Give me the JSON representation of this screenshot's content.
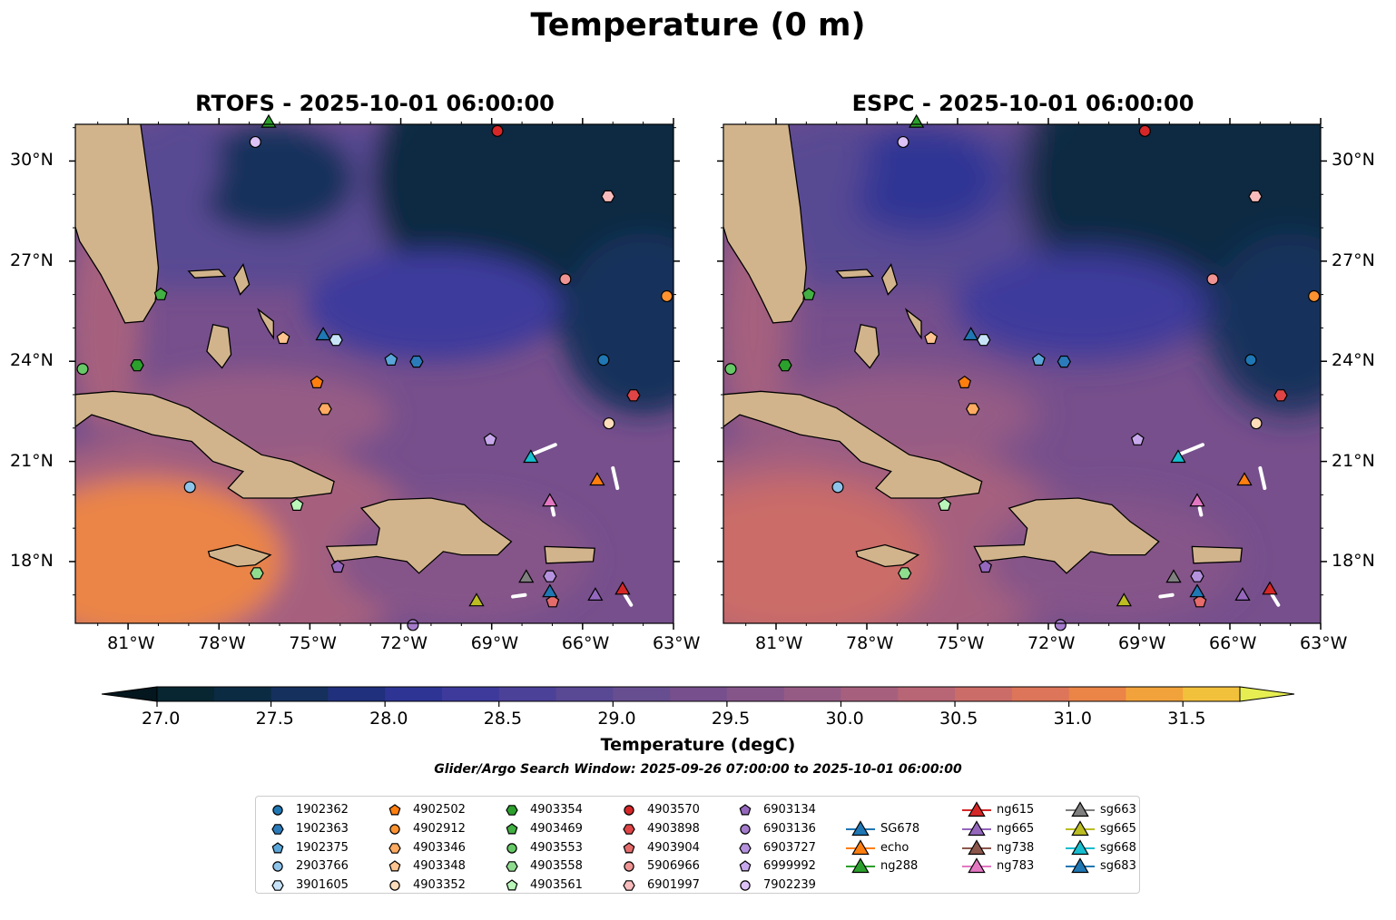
{
  "title": "Temperature (0 m)",
  "panels": [
    {
      "id": "rtofs",
      "title": "RTOFS - 2025-10-01 06:00:00"
    },
    {
      "id": "espc",
      "title": "ESPC - 2025-10-01 06:00:00"
    }
  ],
  "axes": {
    "lon_ticks": [
      "81°W",
      "78°W",
      "75°W",
      "72°W",
      "69°W",
      "66°W",
      "63°W"
    ],
    "lon_values": [
      -81,
      -78,
      -75,
      -72,
      -69,
      -66,
      -63
    ],
    "lat_ticks": [
      "30°N",
      "27°N",
      "24°N",
      "21°N",
      "18°N"
    ],
    "lat_values": [
      30,
      27,
      24,
      21,
      18
    ],
    "lon_range": [
      -82.74,
      -63.0
    ],
    "lat_range": [
      16.15,
      31.1
    ]
  },
  "colorbar": {
    "label": "Temperature (degC)",
    "range": [
      27.0,
      31.75
    ],
    "step": 0.25,
    "extend": "both",
    "ticks": [
      "27.0",
      "27.5",
      "28.0",
      "28.5",
      "29.0",
      "29.5",
      "30.0",
      "30.5",
      "31.0",
      "31.5"
    ],
    "tick_values": [
      27.0,
      27.5,
      28.0,
      28.5,
      29.0,
      29.5,
      30.0,
      30.5,
      31.0,
      31.5
    ],
    "colors": [
      "#072631",
      "#0b2b42",
      "#15305c",
      "#20307c",
      "#2e3494",
      "#3d3a9c",
      "#4b4198",
      "#594893",
      "#674e90",
      "#764f8c",
      "#855589",
      "#955b85",
      "#a6607e",
      "#b86675",
      "#cb6c68",
      "#dc7559",
      "#ea8447",
      "#f2a23a",
      "#f2c13c"
    ],
    "under_color": "#04161e",
    "over_color": "#e6ee52"
  },
  "search_window": "Glider/Argo Search Window: 2025-09-26 07:00:00 to 2025-10-01 06:00:00",
  "legend": [
    {
      "label": "1902362",
      "color": "#1f77b4",
      "marker": "circle"
    },
    {
      "label": "1902363",
      "color": "#2b7bba",
      "marker": "hexagon"
    },
    {
      "label": "1902375",
      "color": "#5aa6d9",
      "marker": "pentagon"
    },
    {
      "label": "2903766",
      "color": "#8ec3ea",
      "marker": "circle"
    },
    {
      "label": "3901605",
      "color": "#c7e3f8",
      "marker": "hexagon"
    },
    {
      "label": "4902502",
      "color": "#ff7f0e",
      "marker": "pentagon"
    },
    {
      "label": "4902912",
      "color": "#ff9230",
      "marker": "circle"
    },
    {
      "label": "4903346",
      "color": "#ffab62",
      "marker": "hexagon"
    },
    {
      "label": "4903348",
      "color": "#ffc48f",
      "marker": "pentagon"
    },
    {
      "label": "4903352",
      "color": "#ffddbb",
      "marker": "circle"
    },
    {
      "label": "4903354",
      "color": "#2ca02c",
      "marker": "hexagon"
    },
    {
      "label": "4903469",
      "color": "#42b042",
      "marker": "pentagon"
    },
    {
      "label": "4903553",
      "color": "#66c866",
      "marker": "circle"
    },
    {
      "label": "4903558",
      "color": "#8fdc8f",
      "marker": "hexagon"
    },
    {
      "label": "4903561",
      "color": "#baf6ba",
      "marker": "pentagon"
    },
    {
      "label": "4903570",
      "color": "#d62728",
      "marker": "circle"
    },
    {
      "label": "4903898",
      "color": "#df4546",
      "marker": "hexagon"
    },
    {
      "label": "4903904",
      "color": "#e66b6b",
      "marker": "pentagon"
    },
    {
      "label": "5906966",
      "color": "#ef9393",
      "marker": "circle"
    },
    {
      "label": "6901997",
      "color": "#f8bcbc",
      "marker": "hexagon"
    },
    {
      "label": "6903134",
      "color": "#9467bd",
      "marker": "pentagon"
    },
    {
      "label": "6903136",
      "color": "#a57ccc",
      "marker": "circle"
    },
    {
      "label": "6903727",
      "color": "#b592de",
      "marker": "hexagon"
    },
    {
      "label": "6999992",
      "color": "#c8a8ec",
      "marker": "pentagon"
    },
    {
      "label": "7902239",
      "color": "#dcc2f7",
      "marker": "circle"
    },
    {
      "label": "SG678",
      "color": "#1f77b4",
      "marker": "triangle"
    },
    {
      "label": "echo",
      "color": "#ff7f0e",
      "marker": "triangle"
    },
    {
      "label": "ng288",
      "color": "#2ca02c",
      "marker": "triangle"
    },
    {
      "label": "ng615",
      "color": "#d62728",
      "marker": "triangle"
    },
    {
      "label": "ng665",
      "color": "#9467bd",
      "marker": "triangle"
    },
    {
      "label": "ng738",
      "color": "#8c564b",
      "marker": "triangle"
    },
    {
      "label": "ng783",
      "color": "#e377c2",
      "marker": "triangle"
    },
    {
      "label": "sg663",
      "color": "#7f7f7f",
      "marker": "triangle"
    },
    {
      "label": "sg665",
      "color": "#bcbd22",
      "marker": "triangle"
    },
    {
      "label": "sg668",
      "color": "#17becf",
      "marker": "triangle"
    },
    {
      "label": "sg683",
      "color": "#1f77b4",
      "marker": "triangle"
    }
  ],
  "observations": [
    {
      "id": "ng288",
      "lon": -76.36,
      "lat": 31.17
    },
    {
      "id": "7902239",
      "lon": -76.8,
      "lat": 30.57
    },
    {
      "id": "4903570",
      "lon": -68.81,
      "lat": 30.9
    },
    {
      "id": "6901997",
      "lon": -65.16,
      "lat": 28.94
    },
    {
      "id": "5906966",
      "lon": -66.57,
      "lat": 26.46
    },
    {
      "id": "4902912",
      "lon": -63.22,
      "lat": 25.95
    },
    {
      "id": "4903469",
      "lon": -79.92,
      "lat": 26.0
    },
    {
      "id": "4903553",
      "lon": -82.5,
      "lat": 23.77
    },
    {
      "id": "4903354",
      "lon": -80.7,
      "lat": 23.88
    },
    {
      "id": "4903348",
      "lon": -75.88,
      "lat": 24.69
    },
    {
      "id": "SG678",
      "lon": -74.56,
      "lat": 24.8
    },
    {
      "id": "3901605",
      "lon": -74.14,
      "lat": 24.64
    },
    {
      "id": "1902375",
      "lon": -72.32,
      "lat": 24.04
    },
    {
      "id": "1902363",
      "lon": -71.48,
      "lat": 23.99
    },
    {
      "id": "1902362",
      "lon": -65.31,
      "lat": 24.04
    },
    {
      "id": "4902502",
      "lon": -74.77,
      "lat": 23.36
    },
    {
      "id": "4903346",
      "lon": -74.5,
      "lat": 22.57
    },
    {
      "id": "4903898",
      "lon": -64.32,
      "lat": 22.98
    },
    {
      "id": "4903352",
      "lon": -65.13,
      "lat": 22.14
    },
    {
      "id": "6999992",
      "lon": -69.05,
      "lat": 21.65
    },
    {
      "id": "sg668",
      "lon": -67.71,
      "lat": 21.13
    },
    {
      "id": "echo",
      "lon": -65.52,
      "lat": 20.45
    },
    {
      "id": "ng783",
      "lon": -67.08,
      "lat": 19.82
    },
    {
      "id": "2903766",
      "lon": -78.96,
      "lat": 20.23
    },
    {
      "id": "4903561",
      "lon": -75.43,
      "lat": 19.69
    },
    {
      "id": "6903134",
      "lon": -74.08,
      "lat": 17.84
    },
    {
      "id": "4903558",
      "lon": -76.75,
      "lat": 17.65
    },
    {
      "id": "sg663",
      "lon": -67.86,
      "lat": 17.54
    },
    {
      "id": "6903727",
      "lon": -67.08,
      "lat": 17.56
    },
    {
      "id": "4903904",
      "lon": -66.99,
      "lat": 16.8
    },
    {
      "id": "sg683",
      "lon": -67.08,
      "lat": 17.1
    },
    {
      "id": "ng665",
      "lon": -65.58,
      "lat": 17.0
    },
    {
      "id": "ng615",
      "lon": -64.68,
      "lat": 17.18
    },
    {
      "id": "sg665",
      "lon": -69.5,
      "lat": 16.83
    },
    {
      "id": "6903136",
      "lon": -71.6,
      "lat": 16.1
    }
  ]
}
